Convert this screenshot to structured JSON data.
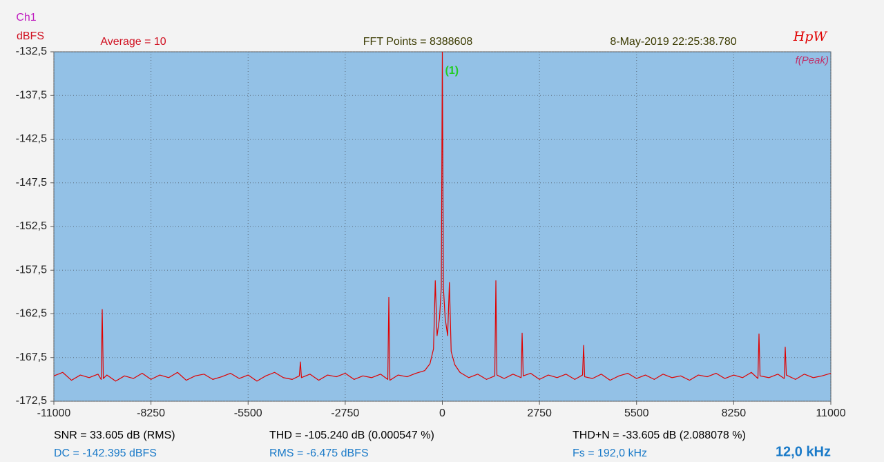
{
  "chart_data": {
    "type": "line",
    "y_unit": "dBFS",
    "channel": "Ch1",
    "header": [
      "Average = 10",
      "FFT Points = 8388608",
      "8-May-2019 22:25:38.780"
    ],
    "brand": "HpW",
    "mode": "f(Peak)",
    "annotations": [
      {
        "text": "(1)",
        "x": 0
      }
    ],
    "stats": [
      [
        "SNR = 33.605 dB (RMS)",
        "THD = -105.240 dB (0.000547 %)",
        "THD+N = -33.605 dB (2.088078 %)"
      ],
      [
        "DC = -142.395 dBFS",
        "RMS = -6.475 dBFS",
        "Fs = 192,0 kHz"
      ]
    ],
    "span": "12,0 kHz",
    "xlim": [
      -11000,
      11000
    ],
    "xticks": [
      -11000,
      -8250,
      -5500,
      -2750,
      0,
      2750,
      5500,
      8250,
      11000
    ],
    "ylim": [
      -132.5,
      -172.5
    ],
    "yticks": [
      {
        "value": -132.5,
        "label": "-132,5"
      },
      {
        "value": -137.5,
        "label": "-137,5"
      },
      {
        "value": -142.5,
        "label": "-142,5"
      },
      {
        "value": -147.5,
        "label": "-147,5"
      },
      {
        "value": -152.5,
        "label": "-152,5"
      },
      {
        "value": -157.5,
        "label": "-157,5"
      },
      {
        "value": -162.5,
        "label": "-162,5"
      },
      {
        "value": -167.5,
        "label": "-167,5"
      },
      {
        "value": -172.5,
        "label": "-172,5"
      }
    ],
    "grid": true,
    "x": [
      -11000,
      -10750,
      -10500,
      -10250,
      -10000,
      -9750,
      -9660,
      -9631,
      -9600,
      -9500,
      -9250,
      -9000,
      -8750,
      -8500,
      -8250,
      -8000,
      -7750,
      -7500,
      -7250,
      -7000,
      -6750,
      -6500,
      -6250,
      -6000,
      -5750,
      -5500,
      -5250,
      -5000,
      -4750,
      -4500,
      -4250,
      -4050,
      -4019,
      -3990,
      -3750,
      -3500,
      -3250,
      -3000,
      -2750,
      -2500,
      -2250,
      -2000,
      -1750,
      -1545,
      -1515,
      -1485,
      -1250,
      -1000,
      -750,
      -500,
      -350,
      -250,
      -200,
      -150,
      -80,
      -30,
      0,
      30,
      80,
      150,
      200,
      250,
      350,
      500,
      750,
      1000,
      1250,
      1485,
      1516,
      1545,
      1750,
      2000,
      2230,
      2259,
      2290,
      2500,
      2750,
      3000,
      3250,
      3500,
      3750,
      3970,
      4000,
      4030,
      4250,
      4500,
      4750,
      5000,
      5250,
      5500,
      5750,
      6000,
      6250,
      6500,
      6750,
      7000,
      7250,
      7500,
      7750,
      8000,
      8250,
      8500,
      8750,
      8936,
      8966,
      8996,
      9250,
      9500,
      9680,
      9709,
      9740,
      10000,
      10250,
      10500,
      10750,
      11000
    ],
    "series": [
      {
        "name": "Ch1",
        "color": "#e00000",
        "values": [
          -169.6,
          -169.2,
          -170.1,
          -169.5,
          -169.8,
          -169.4,
          -170.0,
          -162.0,
          -169.9,
          -169.5,
          -170.2,
          -169.6,
          -169.9,
          -169.3,
          -170.0,
          -169.5,
          -169.8,
          -169.2,
          -170.1,
          -169.6,
          -169.4,
          -170.0,
          -169.7,
          -169.3,
          -169.9,
          -169.5,
          -170.2,
          -169.6,
          -169.2,
          -169.8,
          -170.0,
          -169.6,
          -168.0,
          -169.8,
          -169.4,
          -170.1,
          -169.5,
          -169.7,
          -169.3,
          -170.0,
          -169.6,
          -169.8,
          -169.4,
          -170.0,
          -160.6,
          -170.1,
          -169.5,
          -169.7,
          -169.3,
          -169.0,
          -168.2,
          -166.5,
          -158.7,
          -165.0,
          -163.0,
          -159.5,
          -132.5,
          -159.5,
          -163.0,
          -165.0,
          -158.9,
          -166.8,
          -168.3,
          -169.2,
          -169.8,
          -169.4,
          -170.0,
          -169.6,
          -158.7,
          -169.5,
          -169.9,
          -169.4,
          -169.8,
          -164.7,
          -169.6,
          -169.3,
          -170.0,
          -169.5,
          -169.8,
          -169.4,
          -170.0,
          -169.5,
          -166.1,
          -169.7,
          -169.9,
          -169.4,
          -170.1,
          -169.6,
          -169.3,
          -169.9,
          -169.5,
          -170.0,
          -169.4,
          -169.8,
          -169.6,
          -170.1,
          -169.5,
          -169.7,
          -169.3,
          -169.9,
          -169.5,
          -169.8,
          -169.2,
          -169.9,
          -164.8,
          -169.6,
          -169.8,
          -169.4,
          -169.9,
          -166.3,
          -169.5,
          -170.0,
          -169.4,
          -169.8,
          -169.6,
          -169.3
        ]
      }
    ]
  }
}
